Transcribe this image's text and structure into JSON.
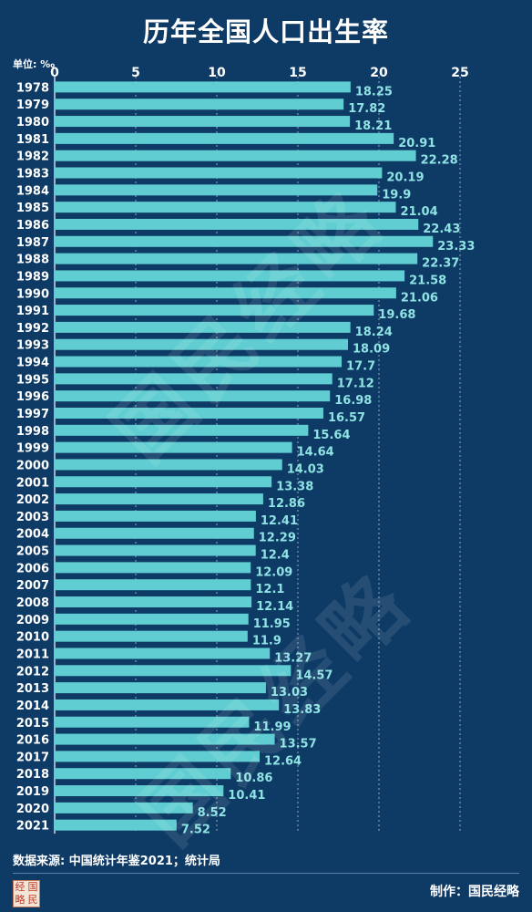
{
  "title": "历年全国人口出生率",
  "unit": "单位: ‰",
  "watermark": "国民经略",
  "source": "数据来源: 中国统计年鉴2021；统计局",
  "credit": "制作：国民经略",
  "logo_chars": [
    "经",
    "国",
    "略",
    "民"
  ],
  "colors": {
    "background": "#0e3a66",
    "bar": "#5fcdd1",
    "label": "#8fe3e3",
    "text": "#ffffff",
    "grid": "#ffffff"
  },
  "chart_data": {
    "type": "bar",
    "orientation": "horizontal",
    "title": "历年全国人口出生率",
    "unit": "‰",
    "xlim": [
      0,
      25
    ],
    "xticks": [
      0,
      5,
      10,
      15,
      20,
      25
    ],
    "grid": true,
    "categories": [
      "1978",
      "1979",
      "1980",
      "1981",
      "1982",
      "1983",
      "1984",
      "1985",
      "1986",
      "1987",
      "1988",
      "1989",
      "1990",
      "1991",
      "1992",
      "1993",
      "1994",
      "1995",
      "1996",
      "1997",
      "1998",
      "1999",
      "2000",
      "2001",
      "2002",
      "2003",
      "2004",
      "2005",
      "2006",
      "2007",
      "2008",
      "2009",
      "2010",
      "2011",
      "2012",
      "2013",
      "2014",
      "2015",
      "2016",
      "2017",
      "2018",
      "2019",
      "2020",
      "2021"
    ],
    "values": [
      18.25,
      17.82,
      18.21,
      20.91,
      22.28,
      20.19,
      19.9,
      21.04,
      22.43,
      23.33,
      22.37,
      21.58,
      21.06,
      19.68,
      18.24,
      18.09,
      17.7,
      17.12,
      16.98,
      16.57,
      15.64,
      14.64,
      14.03,
      13.38,
      12.86,
      12.41,
      12.29,
      12.4,
      12.09,
      12.1,
      12.14,
      11.95,
      11.9,
      13.27,
      14.57,
      13.03,
      13.83,
      11.99,
      13.57,
      12.64,
      10.86,
      10.41,
      8.52,
      7.52
    ],
    "labels": [
      "18.25",
      "17.82",
      "18.21",
      "20.91",
      "22.28",
      "20.19",
      "19.9",
      "21.04",
      "22.43",
      "23.33",
      "22.37",
      "21.58",
      "21.06",
      "19.68",
      "18.24",
      "18.09",
      "17.7",
      "17.12",
      "16.98",
      "16.57",
      "15.64",
      "14.64",
      "14.03",
      "13.38",
      "12.86",
      "12.41",
      "12.29",
      "12.4",
      "12.09",
      "12.1",
      "12.14",
      "11.95",
      "11.9",
      "13.27",
      "14.57",
      "13.03",
      "13.83",
      "11.99",
      "13.57",
      "12.64",
      "10.86",
      "10.41",
      "8.52",
      "7.52"
    ]
  }
}
